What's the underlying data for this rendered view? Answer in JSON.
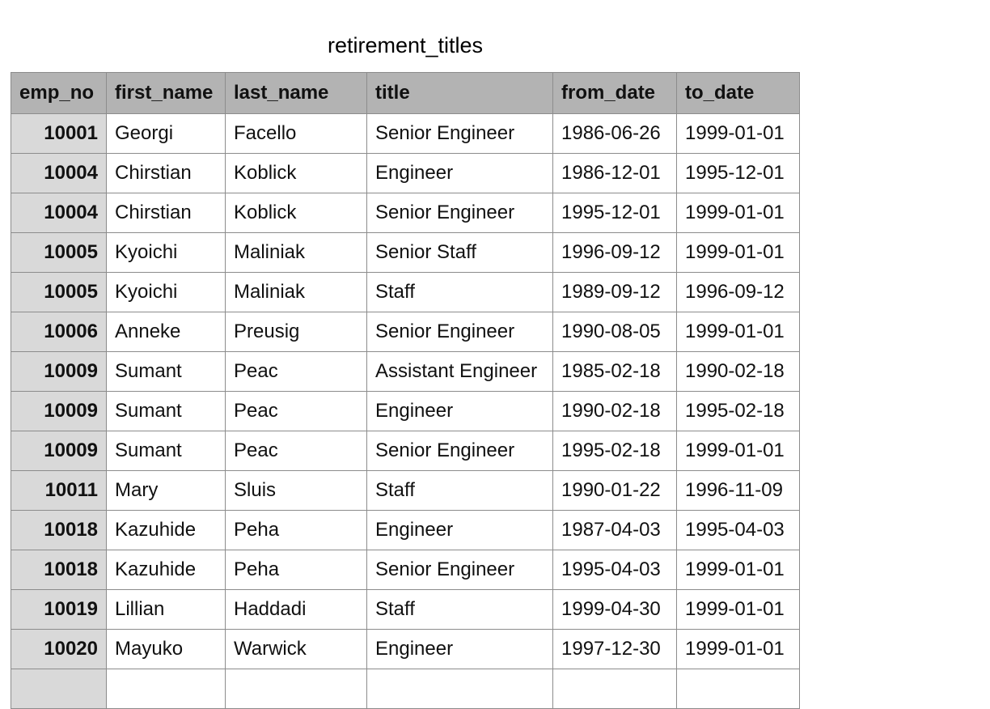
{
  "sheet": {
    "title": "retirement_titles"
  },
  "table": {
    "headers": [
      "emp_no",
      "first_name",
      "last_name",
      "title",
      "from_date",
      "to_date"
    ],
    "rows": [
      [
        "10001",
        "Georgi",
        "Facello",
        "Senior Engineer",
        "1986-06-26",
        "1999-01-01"
      ],
      [
        "10004",
        "Chirstian",
        "Koblick",
        "Engineer",
        "1986-12-01",
        "1995-12-01"
      ],
      [
        "10004",
        "Chirstian",
        "Koblick",
        "Senior Engineer",
        "1995-12-01",
        "1999-01-01"
      ],
      [
        "10005",
        "Kyoichi",
        "Maliniak",
        "Senior Staff",
        "1996-09-12",
        "1999-01-01"
      ],
      [
        "10005",
        "Kyoichi",
        "Maliniak",
        "Staff",
        "1989-09-12",
        "1996-09-12"
      ],
      [
        "10006",
        "Anneke",
        "Preusig",
        "Senior Engineer",
        "1990-08-05",
        "1999-01-01"
      ],
      [
        "10009",
        "Sumant",
        "Peac",
        "Assistant Engineer",
        "1985-02-18",
        "1990-02-18"
      ],
      [
        "10009",
        "Sumant",
        "Peac",
        "Engineer",
        "1990-02-18",
        "1995-02-18"
      ],
      [
        "10009",
        "Sumant",
        "Peac",
        "Senior Engineer",
        "1995-02-18",
        "1999-01-01"
      ],
      [
        "10011",
        "Mary",
        "Sluis",
        "Staff",
        "1990-01-22",
        "1996-11-09"
      ],
      [
        "10018",
        "Kazuhide",
        "Peha",
        "Engineer",
        "1987-04-03",
        "1995-04-03"
      ],
      [
        "10018",
        "Kazuhide",
        "Peha",
        "Senior Engineer",
        "1995-04-03",
        "1999-01-01"
      ],
      [
        "10019",
        "Lillian",
        "Haddadi",
        "Staff",
        "1999-04-30",
        "1999-01-01"
      ],
      [
        "10020",
        "Mayuko",
        "Warwick",
        "Engineer",
        "1997-12-30",
        "1999-01-01"
      ],
      [
        "",
        "",
        "",
        "",
        "",
        ""
      ]
    ]
  }
}
